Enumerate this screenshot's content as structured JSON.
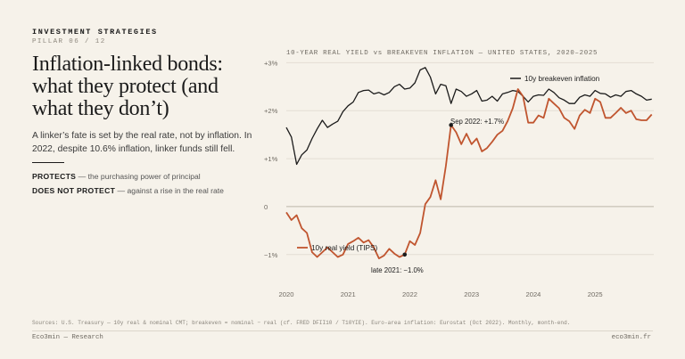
{
  "header": {
    "eyebrow": "INVESTMENT STRATEGIES",
    "pillar": "PILLAR 06 / 12",
    "title": "Inflation-linked bonds: what they protect (and what they don’t)",
    "lede": "A linker’s fate is set by the real rate, not by inflation. In 2022, despite 10.6% inflation, linker funds still fell."
  },
  "definitions": [
    {
      "term": "PROTECTS",
      "text": "— the purchasing power of principal"
    },
    {
      "term": "DOES NOT PROTECT",
      "text": "— against a rise in the real rate"
    }
  ],
  "footer": {
    "source": "Sources: U.S. Treasury — 10y real & nominal CMT; breakeven = nominal − real (cf. FRED DFII10 / T10YIE). Euro-area inflation: Eurostat (Oct 2022). Monthly, month-end.",
    "brand": "Eco3min — Research",
    "site": "eco3min.fr"
  },
  "colors": {
    "breakeven": "#1b1b1b",
    "real_yield": "#c0552f",
    "grid": "#e3ded4",
    "zero_line": "#bdb7ab",
    "axis_text": "#6f6a62"
  },
  "chart_data": {
    "type": "line",
    "title": "10-YEAR REAL YIELD vs BREAKEVEN INFLATION — UNITED STATES, 2020–2025",
    "xlabel": "",
    "ylabel": "",
    "x_ticks": [
      "2020",
      "2021",
      "2022",
      "2023",
      "2024",
      "2025"
    ],
    "y_ticks": [
      {
        "value": 3,
        "label": "+3%"
      },
      {
        "value": 2,
        "label": "+2%"
      },
      {
        "value": 1,
        "label": "+1%"
      },
      {
        "value": 0,
        "label": "0"
      },
      {
        "value": -1,
        "label": "−1%"
      }
    ],
    "ylim": [
      -1.45,
      3.1
    ],
    "xlim": [
      2020.0,
      2025.95
    ],
    "grid": true,
    "legend": "inline labels",
    "series": [
      {
        "name": "10y breakeven inflation",
        "color_key": "breakeven",
        "x": [
          2020.0,
          2020.083,
          2020.167,
          2020.25,
          2020.333,
          2020.417,
          2020.5,
          2020.583,
          2020.667,
          2020.75,
          2020.833,
          2020.917,
          2021.0,
          2021.083,
          2021.167,
          2021.25,
          2021.333,
          2021.417,
          2021.5,
          2021.583,
          2021.667,
          2021.75,
          2021.833,
          2021.917,
          2022.0,
          2022.083,
          2022.167,
          2022.25,
          2022.333,
          2022.417,
          2022.5,
          2022.583,
          2022.667,
          2022.75,
          2022.833,
          2022.917,
          2023.0,
          2023.083,
          2023.167,
          2023.25,
          2023.333,
          2023.417,
          2023.5,
          2023.583,
          2023.667,
          2023.75,
          2023.833,
          2023.917,
          2024.0,
          2024.083,
          2024.167,
          2024.25,
          2024.333,
          2024.417,
          2024.5,
          2024.583,
          2024.667,
          2024.75,
          2024.833,
          2024.917,
          2025.0,
          2025.083,
          2025.167,
          2025.25,
          2025.333,
          2025.417,
          2025.5,
          2025.583,
          2025.667,
          2025.75,
          2025.833,
          2025.917
        ],
        "values": [
          1.65,
          1.45,
          0.88,
          1.08,
          1.18,
          1.42,
          1.62,
          1.8,
          1.65,
          1.72,
          1.78,
          1.98,
          2.1,
          2.18,
          2.38,
          2.42,
          2.43,
          2.35,
          2.38,
          2.33,
          2.38,
          2.5,
          2.55,
          2.45,
          2.47,
          2.58,
          2.85,
          2.9,
          2.7,
          2.35,
          2.55,
          2.52,
          2.15,
          2.45,
          2.4,
          2.3,
          2.35,
          2.42,
          2.2,
          2.22,
          2.3,
          2.2,
          2.35,
          2.38,
          2.42,
          2.4,
          2.3,
          2.18,
          2.3,
          2.33,
          2.32,
          2.45,
          2.38,
          2.27,
          2.22,
          2.15,
          2.15,
          2.28,
          2.33,
          2.3,
          2.42,
          2.36,
          2.35,
          2.28,
          2.33,
          2.3,
          2.4,
          2.42,
          2.35,
          2.3,
          2.22,
          2.24
        ]
      },
      {
        "name": "10y real yield (TIPS)",
        "color_key": "real_yield",
        "x": [
          2020.0,
          2020.083,
          2020.167,
          2020.25,
          2020.333,
          2020.417,
          2020.5,
          2020.583,
          2020.667,
          2020.75,
          2020.833,
          2020.917,
          2021.0,
          2021.083,
          2021.167,
          2021.25,
          2021.333,
          2021.417,
          2021.5,
          2021.583,
          2021.667,
          2021.75,
          2021.833,
          2021.917,
          2022.0,
          2022.083,
          2022.167,
          2022.25,
          2022.333,
          2022.417,
          2022.5,
          2022.583,
          2022.667,
          2022.75,
          2022.833,
          2022.917,
          2023.0,
          2023.083,
          2023.167,
          2023.25,
          2023.333,
          2023.417,
          2023.5,
          2023.583,
          2023.667,
          2023.75,
          2023.833,
          2023.917,
          2024.0,
          2024.083,
          2024.167,
          2024.25,
          2024.333,
          2024.417,
          2024.5,
          2024.583,
          2024.667,
          2024.75,
          2024.833,
          2024.917,
          2025.0,
          2025.083,
          2025.167,
          2025.25,
          2025.333,
          2025.417,
          2025.5,
          2025.583,
          2025.667,
          2025.75,
          2025.833,
          2025.917
        ],
        "values": [
          -0.12,
          -0.28,
          -0.18,
          -0.45,
          -0.55,
          -0.95,
          -1.05,
          -0.95,
          -0.85,
          -0.95,
          -1.05,
          -1.0,
          -0.78,
          -0.72,
          -0.65,
          -0.75,
          -0.7,
          -0.85,
          -1.08,
          -1.02,
          -0.88,
          -0.98,
          -1.05,
          -1.0,
          -0.72,
          -0.8,
          -0.55,
          0.05,
          0.2,
          0.55,
          0.15,
          0.85,
          1.7,
          1.55,
          1.3,
          1.52,
          1.3,
          1.42,
          1.15,
          1.22,
          1.35,
          1.5,
          1.58,
          1.78,
          2.05,
          2.45,
          2.3,
          1.75,
          1.75,
          1.9,
          1.85,
          2.25,
          2.15,
          2.05,
          1.85,
          1.78,
          1.62,
          1.9,
          2.02,
          1.95,
          2.25,
          2.18,
          1.85,
          1.85,
          1.95,
          2.06,
          1.95,
          2.0,
          1.82,
          1.8,
          1.8,
          1.92
        ]
      }
    ],
    "annotations": [
      {
        "label": "Sep 2022: +1.7%",
        "x": 2022.667,
        "y": 1.7,
        "series": "real_yield",
        "marker": true
      },
      {
        "label": "late 2021: −1.0%",
        "x": 2021.917,
        "y": -1.0,
        "series": "real_yield",
        "marker": true
      }
    ]
  }
}
